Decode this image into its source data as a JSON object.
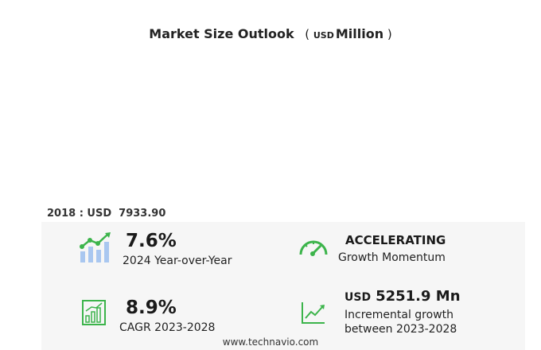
{
  "chart_data": {
    "type": "bar",
    "title": "Market Size Outlook",
    "unit_currency": "USD",
    "unit_scale": "Million",
    "categories": [],
    "values": [],
    "base_year_label": "2018 : USD",
    "base_year_value": "7933.90"
  },
  "metrics": {
    "yoy": {
      "value": "7.6%",
      "label": "2024 Year-over-Year",
      "icon": "rising-bars-icon"
    },
    "momentum": {
      "value": "ACCELERATING",
      "label": "Growth Momentum",
      "icon": "speedometer-icon"
    },
    "cagr": {
      "value": "8.9%",
      "label": "CAGR 2023-2028",
      "icon": "bar-growth-icon"
    },
    "incremental": {
      "currency": "USD",
      "value": "5251.9 Mn",
      "label_line1": "Incremental growth",
      "label_line2": "between 2023-2028",
      "icon": "trend-line-icon"
    }
  },
  "footer": {
    "text": "www.technavio.com"
  },
  "colors": {
    "accent": "#3cb44b",
    "light_accent": "#a9c7f0",
    "panel_bg": "#f6f6f6"
  }
}
